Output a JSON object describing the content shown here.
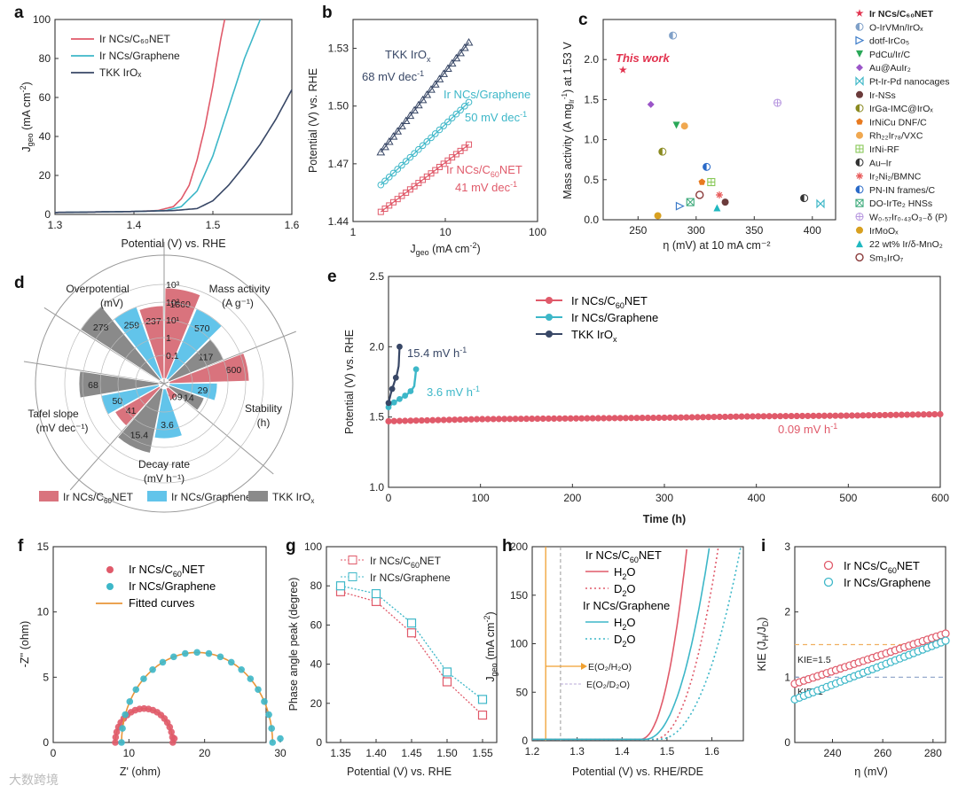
{
  "colors": {
    "ir_c60": "#e05a6a",
    "ir_graphene": "#3db7c8",
    "tkk": "#384766",
    "bar_c60": "#d9737d",
    "bar_graphene": "#62c4ea",
    "bar_tkk": "#8a8a8a",
    "e_line": "#f0a030",
    "e_line_d": "#b8a8d8"
  },
  "watermark": "大数跨境",
  "chart_data": [
    {
      "panel": "a",
      "type": "line",
      "xlabel": "Potential (V) vs. RHE",
      "ylabel": "J_geo (mA cm-2)",
      "xlim": [
        1.3,
        1.6
      ],
      "ylim": [
        0,
        100
      ],
      "xticks": [
        "1.3",
        "1.4",
        "1.5",
        "1.6"
      ],
      "yticks": [
        "0",
        "20",
        "40",
        "60",
        "80",
        "100"
      ],
      "series": [
        {
          "name": "Ir NCs/C60NET",
          "color_key": "ir_c60",
          "x": [
            1.3,
            1.4,
            1.43,
            1.45,
            1.46,
            1.47,
            1.48,
            1.49,
            1.5,
            1.51,
            1.515
          ],
          "y": [
            1,
            1.5,
            2,
            4,
            8,
            15,
            28,
            45,
            66,
            90,
            100
          ]
        },
        {
          "name": "Ir NCs/Graphene",
          "color_key": "ir_graphene",
          "x": [
            1.3,
            1.4,
            1.44,
            1.46,
            1.48,
            1.5,
            1.52,
            1.54,
            1.56
          ],
          "y": [
            1,
            1.5,
            2,
            4,
            12,
            30,
            55,
            80,
            100
          ]
        },
        {
          "name": "TKK IrOx",
          "color_key": "tkk",
          "x": [
            1.3,
            1.4,
            1.45,
            1.48,
            1.5,
            1.52,
            1.54,
            1.56,
            1.58,
            1.6
          ],
          "y": [
            1,
            1.5,
            2,
            3,
            7,
            15,
            25,
            36,
            49,
            64
          ]
        }
      ],
      "legend": [
        "Ir NCs/C₆₀NET",
        "Ir NCs/Graphene",
        "TKK IrOₓ"
      ]
    },
    {
      "panel": "b",
      "type": "scatter",
      "xlabel": "J_geo (mA cm-2)",
      "ylabel": "Potential (V) vs. RHE",
      "xscale": "log",
      "xlim": [
        1,
        100
      ],
      "ylim": [
        1.44,
        1.545
      ],
      "xticks": [
        "1",
        "10",
        "100"
      ],
      "yticks": [
        "1.44",
        "1.47",
        "1.50",
        "1.53"
      ],
      "series": [
        {
          "name": "TKK IrOx",
          "color_key": "tkk",
          "marker": "triangle",
          "slope": "68 mV dec-1",
          "x_from": 2,
          "x_to": 18,
          "y_from": 1.476,
          "y_to": 1.533
        },
        {
          "name": "Ir NCs/Graphene",
          "color_key": "ir_graphene",
          "marker": "circle",
          "slope": "50 mV dec-1",
          "x_from": 2,
          "x_to": 18,
          "y_from": 1.459,
          "y_to": 1.502
        },
        {
          "name": "Ir NCs/C60NET",
          "color_key": "ir_c60",
          "marker": "square",
          "slope": "41 mV dec-1",
          "x_from": 2,
          "x_to": 18,
          "y_from": 1.445,
          "y_to": 1.48
        }
      ],
      "annotations": [
        "TKK IrOₓ",
        "68 mV dec⁻¹",
        "Ir NCs/Graphene",
        "50 mV dec⁻¹",
        "Ir NCs/C₆₀NET",
        "41 mV dec⁻¹"
      ]
    },
    {
      "panel": "c",
      "type": "scatter",
      "xlabel": "η (mV)  at 10 mA cm⁻²",
      "ylabel": "Mass activity (A mgIr⁻¹) at 1.53 V",
      "xlim": [
        220,
        420
      ],
      "ylim": [
        0,
        2.5
      ],
      "xticks": [
        "250",
        "300",
        "350",
        "400"
      ],
      "yticks": [
        "0.0",
        "0.5",
        "1.0",
        "1.5",
        "2.0"
      ],
      "annotation": "This work",
      "points": [
        {
          "name": "Ir NCs/C60NET",
          "label": "Ir NCs/C₆₀NET",
          "x": 237,
          "y": 1.87,
          "color": "#e2334f",
          "marker": "star"
        },
        {
          "name": "O-IrVMn/IrOx",
          "label": "O-IrVMn/IrOₓ",
          "x": 280,
          "y": 2.3,
          "color": "#7fa0c8",
          "marker": "half"
        },
        {
          "name": "dotf-IrCo5",
          "label": "dotf-IrCo₅",
          "x": 286,
          "y": 0.17,
          "color": "#3a7ac8",
          "marker": "tri-right"
        },
        {
          "name": "PdCu/Ir/C",
          "label": "PdCu/Ir/C",
          "x": 283,
          "y": 1.18,
          "color": "#2aa858",
          "marker": "tri-down"
        },
        {
          "name": "Au@AuIr2",
          "label": "Au@AuIr₂",
          "x": 261,
          "y": 1.44,
          "color": "#9b55c8",
          "marker": "diamond"
        },
        {
          "name": "Pt-Ir-Pd nanocages",
          "label": "Pt-Ir-Pd nanocages",
          "x": 407,
          "y": 0.2,
          "color": "#40b8c8",
          "marker": "hourglass"
        },
        {
          "name": "Ir-NSs",
          "label": "Ir-NSs",
          "x": 325,
          "y": 0.22,
          "color": "#6b3b3b",
          "marker": "circle"
        },
        {
          "name": "IrGa-IMC@IrOx",
          "label": "IrGa-IMC@IrOₓ",
          "x": 271,
          "y": 0.85,
          "color": "#8a8a20",
          "marker": "half"
        },
        {
          "name": "IrNiCu DNF/C",
          "label": "IrNiCu DNF/C",
          "x": 305,
          "y": 0.47,
          "color": "#e87a20",
          "marker": "pentagon"
        },
        {
          "name": "Rh22Ir78/VXC",
          "label": "Rh₂₂Ir₇₈/VXC",
          "x": 290,
          "y": 1.17,
          "color": "#f0a850",
          "marker": "circle"
        },
        {
          "name": "IrNi-RF",
          "label": "IrNi-RF",
          "x": 313,
          "y": 0.47,
          "color": "#88c858",
          "marker": "square-grid"
        },
        {
          "name": "Au–Ir",
          "label": "Au–Ir",
          "x": 393,
          "y": 0.27,
          "color": "#333333",
          "marker": "half"
        },
        {
          "name": "Ir2Ni2/BMNC",
          "label": "Ir₂Ni₂/BMNC",
          "x": 320,
          "y": 0.31,
          "color": "#e85a5a",
          "marker": "asterisk"
        },
        {
          "name": "PN-IN frames/C",
          "label": "PN-IN frames/C",
          "x": 309,
          "y": 0.66,
          "color": "#2a6ac8",
          "marker": "half"
        },
        {
          "name": "DO-IrTe2 HNSs",
          "label": "DO-IrTe₂ HNSs",
          "x": 295,
          "y": 0.22,
          "color": "#3aa878",
          "marker": "square-x"
        },
        {
          "name": "W0.57Ir0.43O3-δ (P)",
          "label": "W₀.₅₇Ir₀.₄₃O₃₋δ (P)",
          "x": 370,
          "y": 1.46,
          "color": "#b898e0",
          "marker": "circle-plus"
        },
        {
          "name": "IrMoOx",
          "label": "IrMoOₓ",
          "x": 267,
          "y": 0.05,
          "color": "#d8a020",
          "marker": "circle"
        },
        {
          "name": "22 wt% Ir/δ-MnO2",
          "label": "22 wt% Ir/δ-MnO₂",
          "x": 318,
          "y": 0.15,
          "color": "#20b8c0",
          "marker": "triangle"
        },
        {
          "name": "Sm3IrO7",
          "label": "Sm₃IrO₇",
          "x": 303,
          "y": 0.31,
          "color": "#8a3a3a",
          "marker": "open-circle"
        }
      ]
    },
    {
      "panel": "d",
      "type": "radar-bar",
      "categories": [
        "Overpotential (mV)",
        "Mass activity (A g⁻¹)",
        "Stability (h)",
        "Decay rate (mV h⁻¹)",
        "Tafel slope (mV dec⁻¹)"
      ],
      "category_lines": [
        [
          "Overpotential",
          "(mV)"
        ],
        [
          "Mass activity",
          "(A g⁻¹)"
        ],
        [
          "Stability",
          "(h)"
        ],
        [
          "Decay rate",
          "(mV h⁻¹)"
        ],
        [
          "Tafel slope",
          "(mV dec⁻¹)"
        ]
      ],
      "ring_labels": [
        "10³",
        "10²",
        "10¹",
        "1",
        "0.1"
      ],
      "series": [
        {
          "name": "Ir NCs/C60NET",
          "label": "Ir NCs/C₆₀NET",
          "values": {
            "Overpotential": 237,
            "Mass activity": 1860,
            "Stability": 600,
            "Decay rate": 0.09,
            "Tafel slope": 41
          }
        },
        {
          "name": "Ir NCs/Graphene",
          "label": "Ir NCs/Graphene",
          "values": {
            "Overpotential": 259,
            "Mass activity": 570,
            "Stability": 29,
            "Decay rate": 3.6,
            "Tafel slope": 50
          }
        },
        {
          "name": "TKK IrOx",
          "label": "TKK IrOₓ",
          "values": {
            "Overpotential": 278,
            "Mass activity": 117,
            "Stability": 14,
            "Decay rate": 15.4,
            "Tafel slope": 68
          }
        }
      ],
      "value_labels": [
        "237",
        "259",
        "278",
        "1860",
        "570",
        "117",
        "600",
        "29",
        "14",
        "0.09",
        "3.6",
        "15.4",
        "41",
        "50",
        "68"
      ]
    },
    {
      "panel": "e",
      "type": "line",
      "xlabel": "Time (h)",
      "ylabel": "Potential (V) vs. RHE",
      "xlim": [
        0,
        600
      ],
      "ylim": [
        1.0,
        2.5
      ],
      "xticks": [
        "0",
        "100",
        "200",
        "300",
        "400",
        "500",
        "600"
      ],
      "yticks": [
        "1.0",
        "1.5",
        "2.0",
        "2.5"
      ],
      "series": [
        {
          "name": "Ir NCs/C60NET",
          "label": "Ir NCs/C₆₀NET",
          "color_key": "ir_c60",
          "rate": "0.09 mV h⁻¹",
          "x": [
            0,
            100,
            200,
            300,
            400,
            500,
            600
          ],
          "y": [
            1.47,
            1.485,
            1.49,
            1.495,
            1.505,
            1.51,
            1.52
          ]
        },
        {
          "name": "Ir NCs/Graphene",
          "label": "Ir NCs/Graphene",
          "color_key": "ir_graphene",
          "rate": "3.6 mV h⁻¹",
          "x": [
            0,
            5,
            10,
            15,
            20,
            25,
            28,
            30
          ],
          "y": [
            1.57,
            1.6,
            1.62,
            1.64,
            1.66,
            1.69,
            1.72,
            1.84
          ]
        },
        {
          "name": "TKK IrOx",
          "label": "TKK IrOₓ",
          "color_key": "tkk",
          "rate": "15.4 mV h⁻¹",
          "x": [
            0,
            3,
            6,
            9,
            11,
            12
          ],
          "y": [
            1.6,
            1.68,
            1.74,
            1.8,
            1.86,
            2.0
          ]
        }
      ]
    },
    {
      "panel": "f",
      "type": "scatter",
      "xlabel": "Z' (ohm)",
      "ylabel": "-Z'' (ohm)",
      "xlim": [
        0,
        30
      ],
      "ylim": [
        0,
        15
      ],
      "xticks": [
        "0",
        "10",
        "20",
        "30"
      ],
      "yticks": [
        "0",
        "5",
        "10",
        "15"
      ],
      "legend": [
        "Ir NCs/C₆₀NET",
        "Ir NCs/Graphene",
        "Fitted curves"
      ],
      "series": [
        {
          "name": "Ir NCs/C60NET",
          "color_key": "ir_c60",
          "center": 12,
          "radius": 4,
          "height": 2.6,
          "x_end": 16
        },
        {
          "name": "Ir NCs/Graphene",
          "color_key": "ir_graphene",
          "center": 19,
          "radius": 10.5,
          "height": 6.9,
          "x_end": 30
        }
      ]
    },
    {
      "panel": "g",
      "type": "line",
      "xlabel": "Potential (V) vs. RHE",
      "ylabel": "Phase angle peak  (degree)",
      "xlim": [
        1.33,
        1.57
      ],
      "ylim": [
        0,
        100
      ],
      "xticks": [
        "1.35",
        "1.40",
        "1.45",
        "1.50",
        "1.55"
      ],
      "yticks": [
        "0",
        "20",
        "40",
        "60",
        "80",
        "100"
      ],
      "categories": [
        1.35,
        1.4,
        1.45,
        1.5,
        1.55
      ],
      "series": [
        {
          "name": "Ir NCs/C60NET",
          "label": "Ir NCs/C₆₀NET",
          "color_key": "ir_c60",
          "values": [
            77,
            72,
            56,
            31,
            14
          ]
        },
        {
          "name": "Ir NCs/Graphene",
          "label": "Ir NCs/Graphene",
          "color_key": "ir_graphene",
          "values": [
            80,
            76,
            61,
            36,
            22
          ]
        }
      ]
    },
    {
      "panel": "h",
      "type": "line",
      "xlabel": "Potential (V) vs. RHE/RDE",
      "ylabel": "J_geo (mA cm-2)",
      "xlim": [
        1.2,
        1.67
      ],
      "ylim": [
        0,
        200
      ],
      "xticks": [
        "1.2",
        "1.3",
        "1.4",
        "1.5",
        "1.6"
      ],
      "yticks": [
        "0",
        "50",
        "100",
        "150",
        "200"
      ],
      "legend": {
        "group1": "Ir NCs/C₆₀NET",
        "group2": "Ir NCs/Graphene",
        "h2o": "H₂O",
        "d2o": "D₂O"
      },
      "annotations": [
        "E(O₂/H₂O)",
        "E(O₂/D₂O)"
      ],
      "e_h2o": 1.23,
      "e_d2o": 1.263,
      "series": [
        {
          "name": "Ir NCs/C60NET H2O",
          "color_key": "ir_c60",
          "dash": false,
          "onset": 1.44,
          "end": 1.545
        },
        {
          "name": "Ir NCs/C60NET D2O",
          "color_key": "ir_c60",
          "dash": true,
          "onset": 1.47,
          "end": 1.615
        },
        {
          "name": "Ir NCs/Graphene H2O",
          "color_key": "ir_graphene",
          "dash": false,
          "onset": 1.45,
          "end": 1.595
        },
        {
          "name": "Ir NCs/Graphene D2O",
          "color_key": "ir_graphene",
          "dash": true,
          "onset": 1.48,
          "end": 1.665
        }
      ]
    },
    {
      "panel": "i",
      "type": "scatter",
      "xlabel": "η (mV)",
      "ylabel": "KIE (J_H/J_D)",
      "xlim": [
        225,
        285
      ],
      "ylim": [
        0,
        3
      ],
      "xticks": [
        "240",
        "260",
        "280"
      ],
      "yticks": [
        "0",
        "1",
        "2",
        "3"
      ],
      "refs": [
        {
          "label": "KIE=1.5",
          "y": 1.5
        },
        {
          "label": "KIE=1",
          "y": 1.0
        }
      ],
      "series": [
        {
          "name": "Ir NCs/C60NET",
          "label": "Ir NCs/C₆₀NET",
          "color_key": "ir_c60",
          "x_from": 225,
          "x_to": 285,
          "y_from": 0.9,
          "y_to": 1.67
        },
        {
          "name": "Ir NCs/Graphene",
          "label": "Ir NCs/Graphene",
          "color_key": "ir_graphene",
          "x_from": 225,
          "x_to": 285,
          "y_from": 0.66,
          "y_to": 1.56
        }
      ]
    }
  ],
  "panel_labels": [
    "a",
    "b",
    "c",
    "d",
    "e",
    "f",
    "g",
    "h",
    "i"
  ]
}
